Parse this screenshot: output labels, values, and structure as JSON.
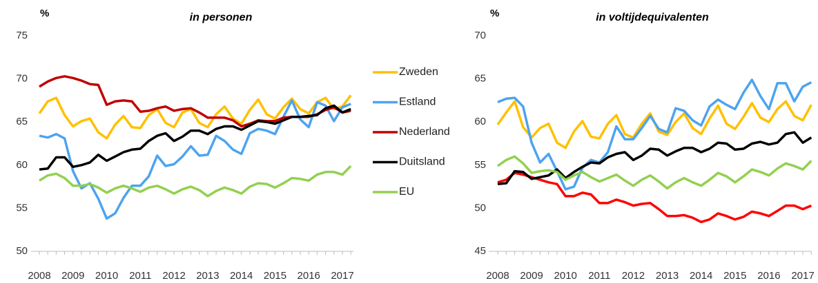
{
  "chart_data": [
    {
      "type": "line",
      "title": "in personen",
      "y_label": "%",
      "categories": [
        "2008",
        null,
        null,
        null,
        "2009",
        null,
        null,
        null,
        "2010",
        null,
        null,
        null,
        "2011",
        null,
        null,
        null,
        "2012",
        null,
        null,
        null,
        "2013",
        null,
        null,
        null,
        "2014",
        null,
        null,
        null,
        "2015",
        null,
        null,
        null,
        "2016",
        null,
        null,
        null,
        "2017",
        null
      ],
      "ylim": [
        50,
        75
      ],
      "yticks": [
        50,
        55,
        60,
        65,
        70,
        75
      ],
      "series": [
        {
          "name": "Zweden",
          "color": "#FFC000",
          "values": [
            66,
            67.4,
            67.8,
            65.8,
            64.5,
            65.1,
            65.4,
            63.8,
            63.1,
            64.7,
            65.7,
            64.4,
            64.3,
            65.8,
            66.5,
            64.9,
            64.4,
            66.1,
            66.5,
            64.9,
            64.4,
            65.9,
            66.8,
            65.4,
            64.8,
            66.4,
            67.6,
            65.9,
            65.4,
            66.7,
            67.7,
            66.5,
            66.0,
            67.3,
            67.8,
            66.5,
            66.8,
            68.1
          ]
        },
        {
          "name": "Estland",
          "color": "#4DA3F0",
          "values": [
            63.4,
            63.2,
            63.6,
            63.1,
            59.3,
            57.3,
            57.9,
            56.1,
            53.8,
            54.4,
            56.2,
            57.6,
            57.6,
            58.7,
            61.1,
            59.9,
            60.1,
            61.0,
            62.2,
            61.1,
            61.2,
            63.4,
            62.8,
            61.8,
            61.3,
            63.7,
            64.2,
            64.0,
            63.6,
            65.6,
            67.5,
            65.3,
            64.4,
            67.3,
            66.9,
            65.1,
            66.7,
            67.1
          ]
        },
        {
          "name": "Nederland",
          "color": "#C00000",
          "values": [
            69.1,
            69.7,
            70.1,
            70.3,
            70.1,
            69.8,
            69.4,
            69.3,
            67.0,
            67.4,
            67.5,
            67.4,
            66.2,
            66.3,
            66.6,
            66.8,
            66.3,
            66.5,
            66.6,
            66.1,
            65.5,
            65.5,
            65.5,
            65.2,
            64.5,
            64.8,
            65.2,
            65.1,
            65.1,
            65.5,
            65.6,
            65.6,
            65.6,
            65.9,
            66.4,
            66.7,
            66.1,
            66.3
          ]
        },
        {
          "name": "Duitsland",
          "color": "#000000",
          "values": [
            59.5,
            59.6,
            60.9,
            60.9,
            59.8,
            60.0,
            60.3,
            61.2,
            60.5,
            61.0,
            61.5,
            61.8,
            61.9,
            62.8,
            63.4,
            63.7,
            62.8,
            63.3,
            64.0,
            64.0,
            63.6,
            64.2,
            64.5,
            64.5,
            64.1,
            64.6,
            65.1,
            65.0,
            64.8,
            65.2,
            65.6,
            65.6,
            65.7,
            65.8,
            66.6,
            66.9,
            66.1,
            66.5
          ]
        },
        {
          "name": "EU",
          "color": "#92D050",
          "values": [
            58.2,
            58.8,
            59.0,
            58.5,
            57.6,
            57.6,
            57.8,
            57.4,
            56.8,
            57.3,
            57.6,
            57.3,
            56.9,
            57.4,
            57.6,
            57.2,
            56.7,
            57.2,
            57.5,
            57.1,
            56.4,
            57.0,
            57.4,
            57.1,
            56.7,
            57.5,
            57.9,
            57.8,
            57.4,
            57.9,
            58.5,
            58.4,
            58.2,
            58.9,
            59.2,
            59.2,
            58.9,
            59.9
          ]
        }
      ]
    },
    {
      "type": "line",
      "title": "in voltijdequivalenten",
      "y_label": "%",
      "categories": [
        "2008",
        null,
        null,
        null,
        "2009",
        null,
        null,
        null,
        "2010",
        null,
        null,
        null,
        "2011",
        null,
        null,
        null,
        "2012",
        null,
        null,
        null,
        "2013",
        null,
        null,
        null,
        "2014",
        null,
        null,
        null,
        "2015",
        null,
        null,
        null,
        "2016",
        null,
        null,
        null,
        "2017",
        null
      ],
      "ylim": [
        45,
        70
      ],
      "yticks": [
        45,
        50,
        55,
        60,
        65,
        70
      ],
      "series": [
        {
          "color": "#FFC000",
          "values": [
            59.7,
            61.1,
            62.4,
            59.4,
            58.2,
            59.3,
            59.8,
            57.6,
            57.0,
            58.9,
            60.1,
            58.3,
            58.1,
            59.8,
            60.8,
            58.6,
            58.2,
            59.8,
            61.0,
            58.9,
            58.5,
            60.0,
            61.0,
            59.3,
            58.6,
            60.4,
            61.9,
            59.8,
            59.2,
            60.6,
            62.2,
            60.5,
            60.0,
            61.5,
            62.4,
            60.7,
            60.2,
            62.0
          ]
        },
        {
          "color": "#4DA3F0",
          "values": [
            62.3,
            62.7,
            62.8,
            61.8,
            57.6,
            55.3,
            56.3,
            54.3,
            52.2,
            52.5,
            54.7,
            55.6,
            55.3,
            56.5,
            59.5,
            58.0,
            58.0,
            59.3,
            60.7,
            59.2,
            58.8,
            61.6,
            61.3,
            60.2,
            59.6,
            61.8,
            62.6,
            62.0,
            61.5,
            63.4,
            64.9,
            63.0,
            61.5,
            64.5,
            64.5,
            62.4,
            64.1,
            64.6
          ]
        },
        {
          "color": "#FF0000",
          "values": [
            53.0,
            53.3,
            54.1,
            53.9,
            53.6,
            53.3,
            53.0,
            52.8,
            51.4,
            51.4,
            51.8,
            51.6,
            50.6,
            50.6,
            51.0,
            50.7,
            50.3,
            50.5,
            50.6,
            49.9,
            49.1,
            49.1,
            49.2,
            48.9,
            48.4,
            48.7,
            49.4,
            49.1,
            48.7,
            49.0,
            49.6,
            49.4,
            49.1,
            49.7,
            50.3,
            50.3,
            49.9,
            50.3
          ]
        },
        {
          "color": "#000000",
          "values": [
            52.8,
            52.9,
            54.3,
            54.2,
            53.4,
            53.6,
            53.8,
            54.5,
            53.5,
            54.2,
            54.8,
            55.3,
            55.2,
            55.9,
            56.3,
            56.5,
            55.6,
            56.1,
            56.9,
            56.8,
            56.1,
            56.6,
            57.0,
            57.0,
            56.5,
            56.9,
            57.6,
            57.5,
            56.8,
            56.9,
            57.5,
            57.7,
            57.4,
            57.6,
            58.6,
            58.8,
            57.6,
            58.2
          ]
        },
        {
          "color": "#92D050",
          "values": [
            54.9,
            55.6,
            56.0,
            55.2,
            54.1,
            54.3,
            54.4,
            54.2,
            53.3,
            53.8,
            54.2,
            53.6,
            53.1,
            53.5,
            53.9,
            53.2,
            52.6,
            53.3,
            53.8,
            53.1,
            52.3,
            53.0,
            53.5,
            53.0,
            52.6,
            53.3,
            54.1,
            53.7,
            53.0,
            53.7,
            54.5,
            54.2,
            53.8,
            54.6,
            55.2,
            54.9,
            54.5,
            55.5
          ]
        }
      ]
    }
  ]
}
